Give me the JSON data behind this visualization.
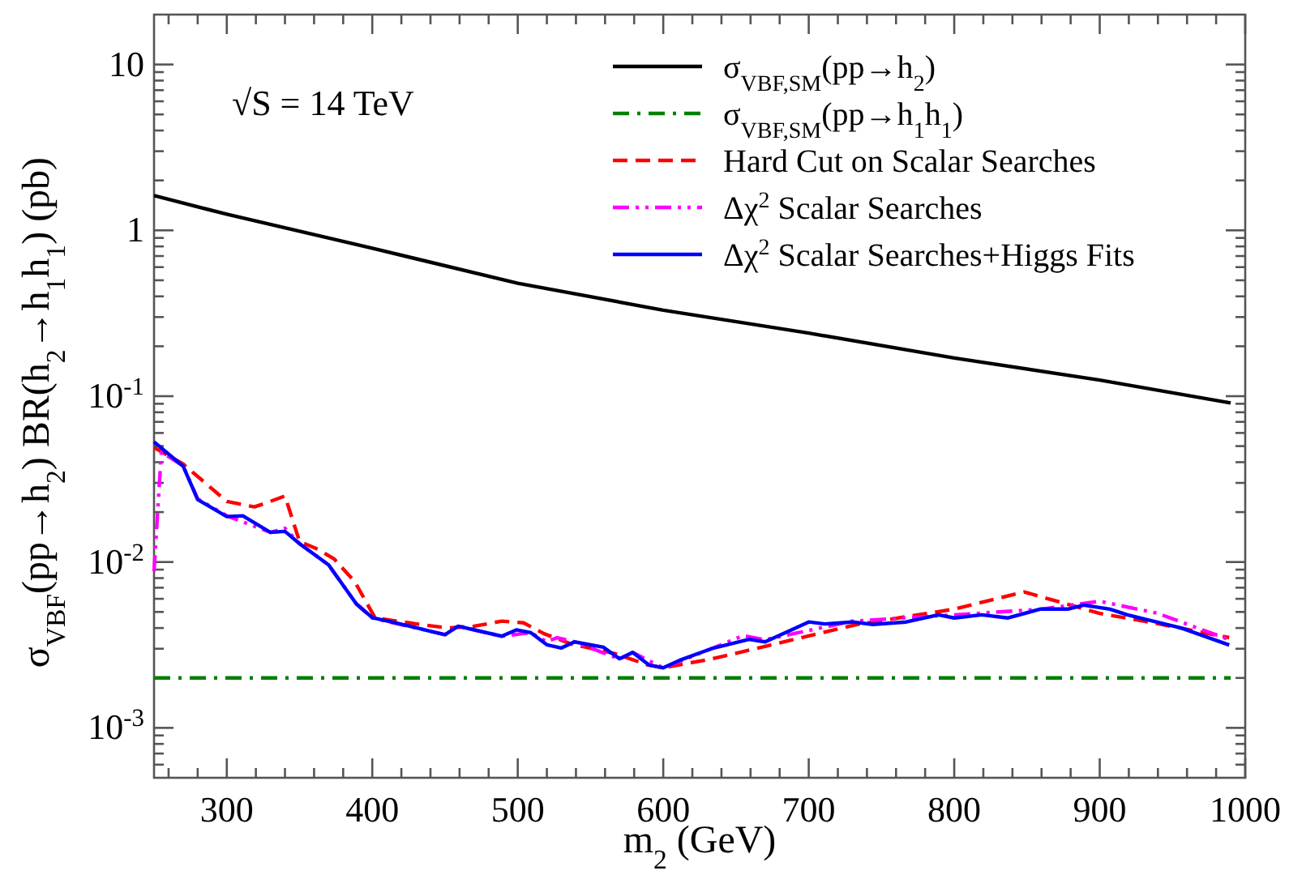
{
  "chart_data": {
    "type": "line",
    "xlabel": "m$_{2}$ (GeV)",
    "ylabel": "σ$_{VBF}$(pp→h$_{2}$) BR(h$_{2}$→h$_{1}$h$_{1}$)   (pb)",
    "annotations": [
      "√S = 14 TeV"
    ],
    "log": "y",
    "legend": "top right",
    "xlim": [
      250,
      1000
    ],
    "ylim": [
      0.0005,
      20
    ],
    "xticks": [
      {
        "value": 260,
        "label": null
      },
      {
        "value": 280,
        "label": null
      },
      300,
      {
        "value": 320,
        "label": null
      },
      {
        "value": 340,
        "label": null
      },
      {
        "value": 360,
        "label": null
      },
      {
        "value": 380,
        "label": null
      },
      400,
      {
        "value": 420,
        "label": null
      },
      {
        "value": 440,
        "label": null
      },
      {
        "value": 460,
        "label": null
      },
      {
        "value": 480,
        "label": null
      },
      500,
      {
        "value": 520,
        "label": null
      },
      {
        "value": 540,
        "label": null
      },
      {
        "value": 560,
        "label": null
      },
      {
        "value": 580,
        "label": null
      },
      600,
      {
        "value": 620,
        "label": null
      },
      {
        "value": 640,
        "label": null
      },
      {
        "value": 660,
        "label": null
      },
      {
        "value": 680,
        "label": null
      },
      700,
      {
        "value": 720,
        "label": null
      },
      {
        "value": 740,
        "label": null
      },
      {
        "value": 760,
        "label": null
      },
      {
        "value": 780,
        "label": null
      },
      800,
      {
        "value": 820,
        "label": null
      },
      {
        "value": 840,
        "label": null
      },
      {
        "value": 860,
        "label": null
      },
      {
        "value": 880,
        "label": null
      },
      900,
      {
        "value": 920,
        "label": null
      },
      {
        "value": 940,
        "label": null
      },
      {
        "value": 960,
        "label": null
      },
      {
        "value": 980,
        "label": null
      },
      1000
    ],
    "yticks": [
      {
        "value": 0.0006,
        "label": null
      },
      {
        "value": 0.0007,
        "label": null
      },
      {
        "value": 0.0008,
        "label": null
      },
      {
        "value": 0.0009,
        "label": null
      },
      {
        "value": 0.001,
        "label": "10$^{-3}$"
      },
      {
        "value": 0.002,
        "label": null
      },
      {
        "value": 0.003,
        "label": null
      },
      {
        "value": 0.004,
        "label": null
      },
      {
        "value": 0.005,
        "label": null
      },
      {
        "value": 0.006,
        "label": null
      },
      {
        "value": 0.007,
        "label": null
      },
      {
        "value": 0.008,
        "label": null
      },
      {
        "value": 0.009,
        "label": null
      },
      {
        "value": 0.01,
        "label": "10$^{-2}$"
      },
      {
        "value": 0.02,
        "label": null
      },
      {
        "value": 0.03,
        "label": null
      },
      {
        "value": 0.04,
        "label": null
      },
      {
        "value": 0.05,
        "label": null
      },
      {
        "value": 0.06,
        "label": null
      },
      {
        "value": 0.07,
        "label": null
      },
      {
        "value": 0.08,
        "label": null
      },
      {
        "value": 0.09,
        "label": null
      },
      {
        "value": 0.1,
        "label": "10$^{-1}$"
      },
      {
        "value": 0.2,
        "label": null
      },
      {
        "value": 0.3,
        "label": null
      },
      {
        "value": 0.4,
        "label": null
      },
      {
        "value": 0.5,
        "label": null
      },
      {
        "value": 0.6,
        "label": null
      },
      {
        "value": 0.7,
        "label": null
      },
      {
        "value": 0.8,
        "label": null
      },
      {
        "value": 0.9,
        "label": null
      },
      1,
      {
        "value": 2,
        "label": null
      },
      {
        "value": 3,
        "label": null
      },
      {
        "value": 4,
        "label": null
      },
      {
        "value": 5,
        "label": null
      },
      {
        "value": 6,
        "label": null
      },
      {
        "value": 7,
        "label": null
      },
      {
        "value": 8,
        "label": null
      },
      {
        "value": 9,
        "label": null
      },
      10
    ],
    "series": [
      {
        "name": "σ$_{VBF,SM}$(pp→h$_{2}$)",
        "color": "#000000",
        "line_style": "solid",
        "x": [
          250,
          300,
          400,
          500,
          600,
          700,
          800,
          900,
          990
        ],
        "values": [
          1.62,
          1.25,
          0.78,
          0.48,
          0.33,
          0.24,
          0.17,
          0.125,
          0.091
        ]
      },
      {
        "name": "σ$_{VBF,SM}$(pp→h$_{1}$h$_{1}$)",
        "color": "#008000",
        "line_style": "dashdot",
        "x": [
          250,
          990
        ],
        "values": [
          0.002,
          0.002
        ]
      },
      {
        "name": "Hard Cut on Scalar Searches",
        "color": "#ff0000",
        "line_style": "dashed",
        "x": [
          250,
          270,
          300,
          319,
          330,
          340,
          350,
          363,
          374,
          388,
          398,
          402,
          433,
          452,
          470,
          489,
          504,
          518,
          537,
          567,
          589,
          600,
          611,
          633,
          670,
          733,
          800,
          848,
          900,
          937,
          989
        ],
        "values": [
          0.049,
          0.039,
          0.0232,
          0.0215,
          0.0232,
          0.025,
          0.0133,
          0.0119,
          0.0104,
          0.0076,
          0.0053,
          0.0046,
          0.0042,
          0.004,
          0.0041,
          0.0044,
          0.0043,
          0.0037,
          0.0032,
          0.0028,
          0.0024,
          0.0023,
          0.0024,
          0.0026,
          0.0031,
          0.0042,
          0.0052,
          0.0066,
          0.0049,
          0.0043,
          0.0035
        ]
      },
      {
        "name": "Δχ$^{2}$ Scalar Searches",
        "color": "#ff00ff",
        "line_style": "dashdotdot",
        "x": [
          250,
          255,
          270,
          280,
          300,
          330,
          340,
          350,
          370,
          389,
          400,
          450,
          459,
          489,
          509,
          520,
          527,
          539,
          570,
          579,
          600,
          633,
          655,
          670,
          730,
          800,
          860,
          900,
          940,
          989
        ],
        "values": [
          0.0088,
          0.046,
          0.038,
          0.024,
          0.019,
          0.0151,
          0.016,
          0.0129,
          0.0096,
          0.0056,
          0.0046,
          0.00365,
          0.0041,
          0.00357,
          0.00375,
          0.0033,
          0.0035,
          0.0033,
          0.0026,
          0.00285,
          0.0023,
          0.003,
          0.0036,
          0.0034,
          0.0044,
          0.0048,
          0.0052,
          0.0058,
          0.0049,
          0.0034
        ]
      },
      {
        "name": "Δχ$^{2}$ Scalar Searches+Higgs Fits",
        "color": "#0000ff",
        "line_style": "solid",
        "x": [
          250,
          270,
          280,
          300,
          311,
          330,
          340,
          350,
          370,
          389,
          400,
          418,
          441,
          450,
          459,
          489,
          499,
          509,
          520,
          530,
          539,
          559,
          570,
          579,
          590,
          600,
          611,
          633,
          659,
          670,
          700,
          711,
          730,
          744,
          767,
          789,
          800,
          819,
          837,
          859,
          878,
          889,
          907,
          919,
          956,
          989
        ],
        "values": [
          0.053,
          0.0378,
          0.0238,
          0.0188,
          0.019,
          0.0151,
          0.0153,
          0.0129,
          0.0096,
          0.0056,
          0.00462,
          0.00426,
          0.0038,
          0.00365,
          0.0041,
          0.00357,
          0.0039,
          0.00375,
          0.00317,
          0.00303,
          0.0033,
          0.00306,
          0.00261,
          0.00285,
          0.0024,
          0.0023,
          0.00255,
          0.003,
          0.00342,
          0.0033,
          0.00435,
          0.00423,
          0.00435,
          0.0042,
          0.00435,
          0.0048,
          0.0046,
          0.0048,
          0.0046,
          0.0052,
          0.0052,
          0.0055,
          0.0052,
          0.0048,
          0.004,
          0.00316
        ]
      }
    ]
  }
}
